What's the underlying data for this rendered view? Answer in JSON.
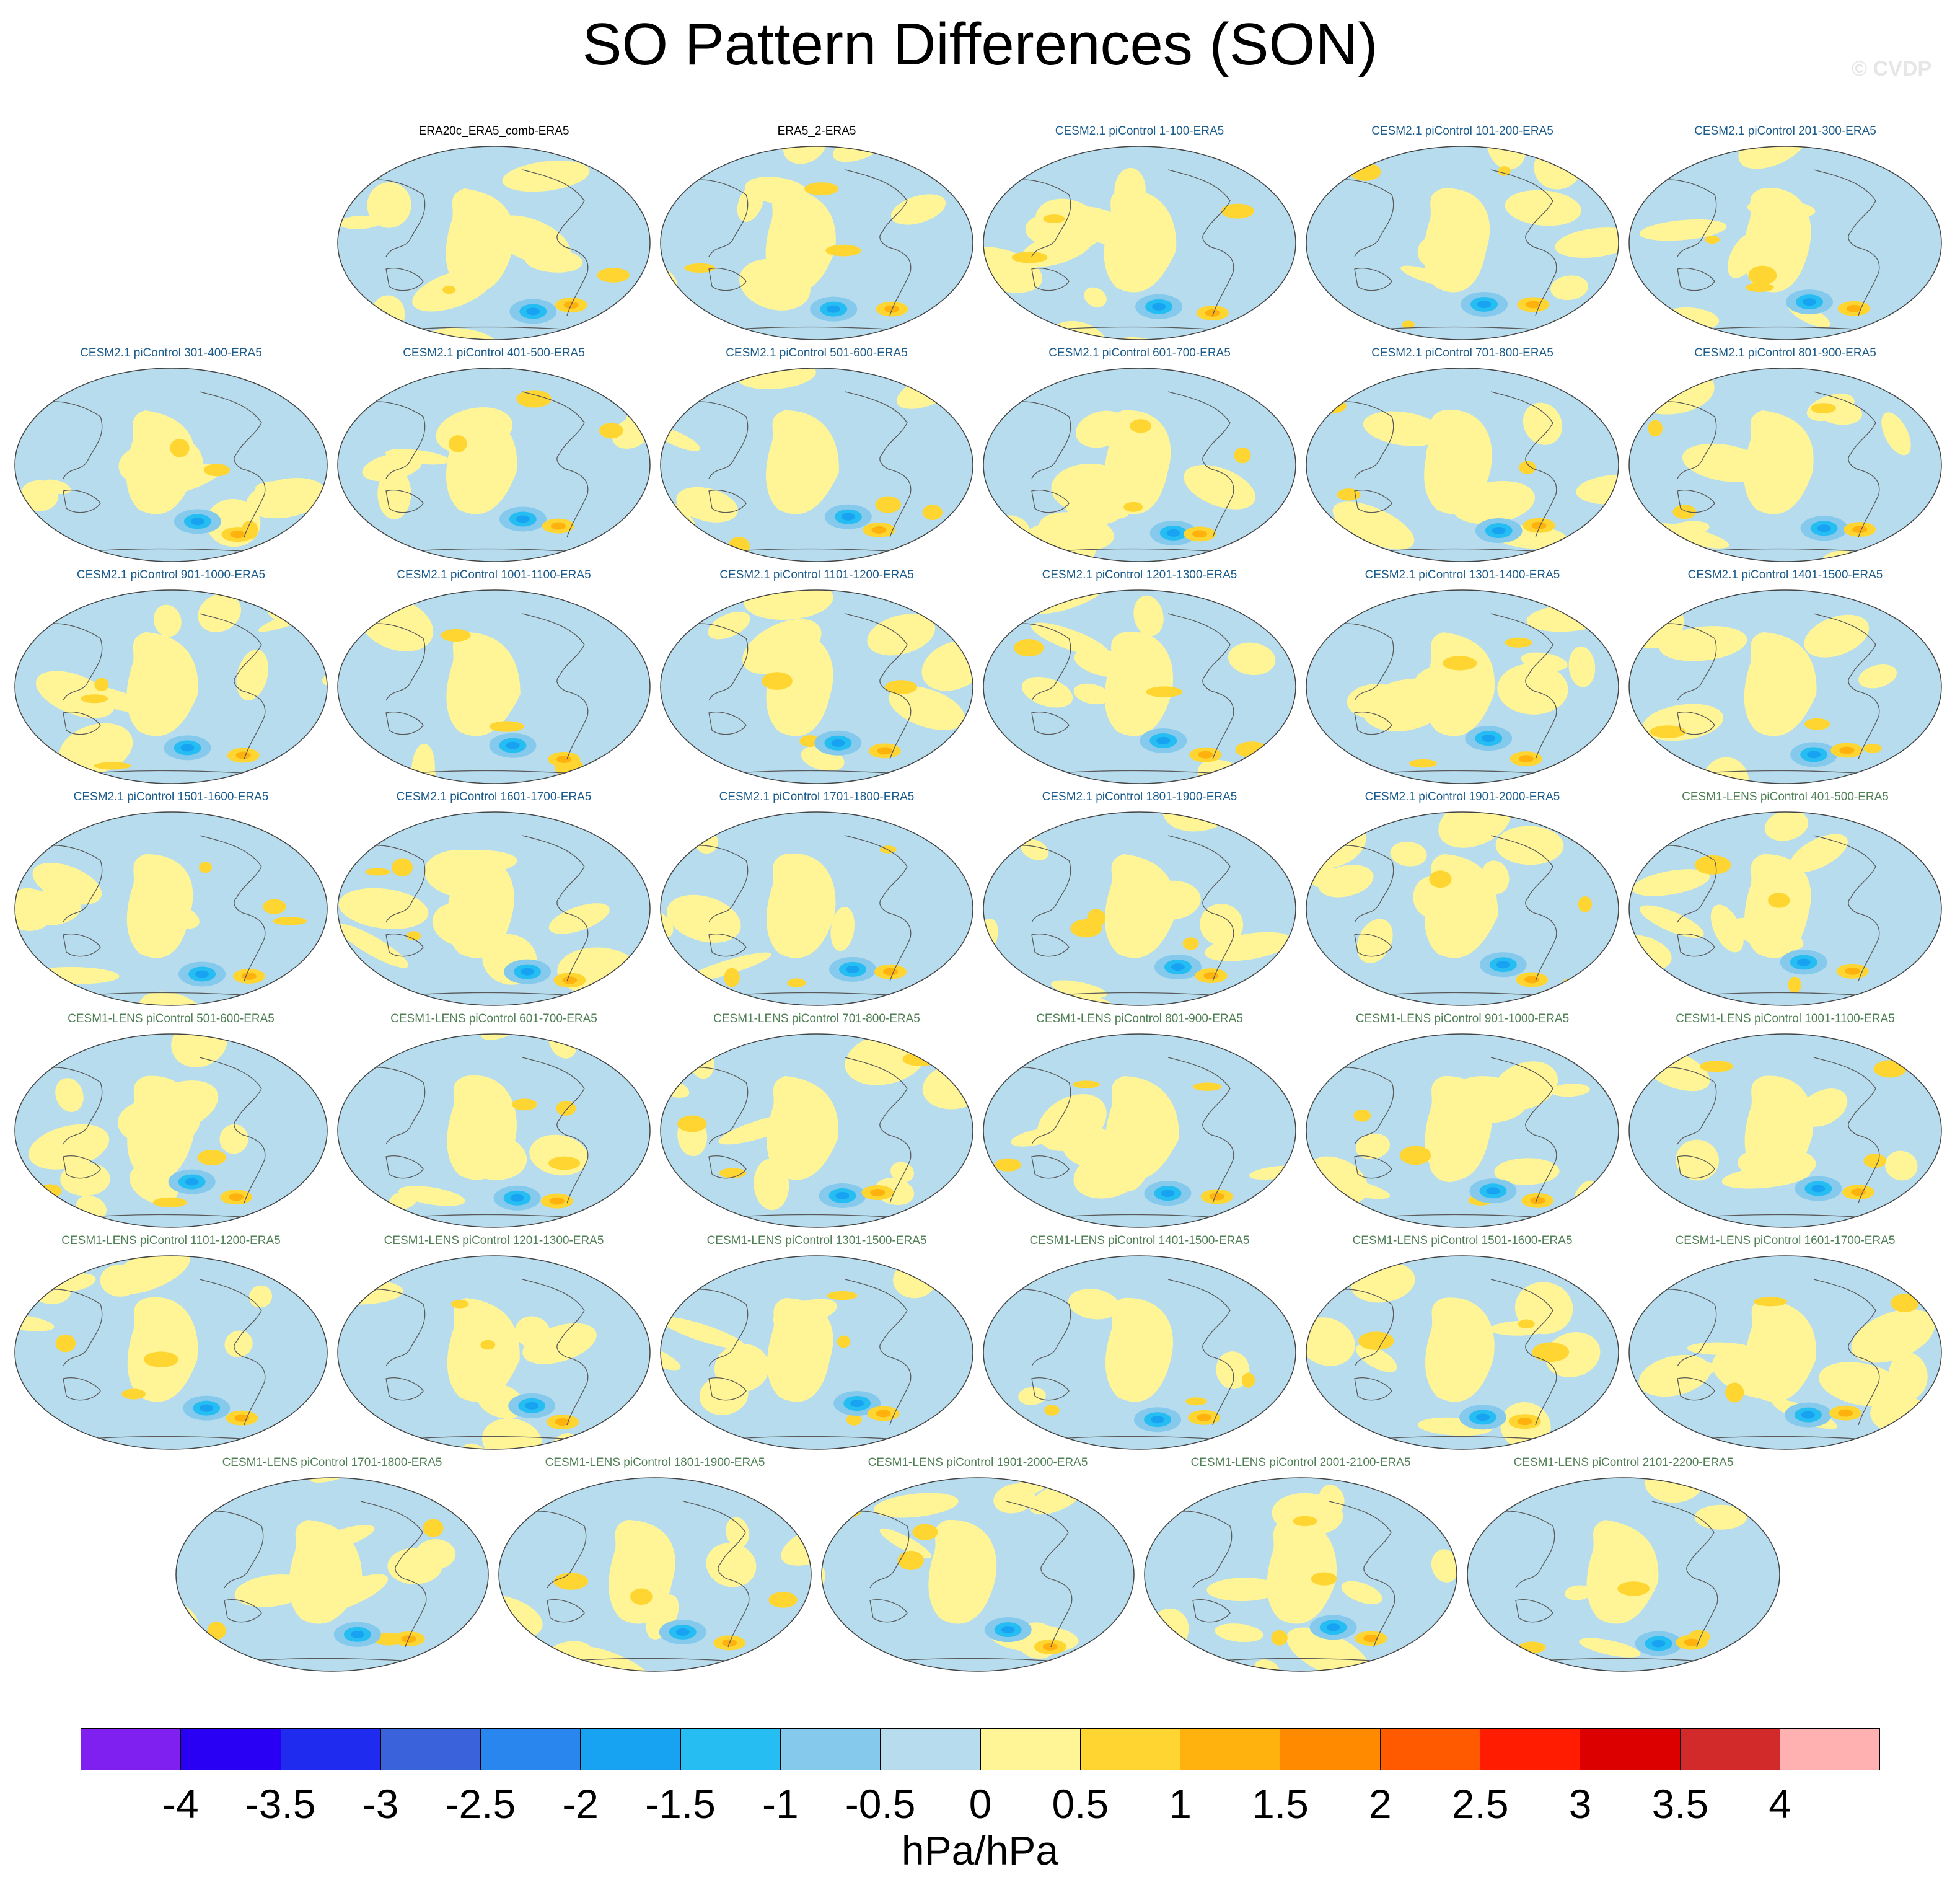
{
  "title": "SO Pattern Differences (SON)",
  "watermark": "© CVDP",
  "panels": [
    {
      "label": "ERA20c_ERA5_comb-ERA5",
      "group": "obs"
    },
    {
      "label": "ERA5_2-ERA5",
      "group": "obs"
    },
    {
      "label": "CESM2.1 piControl 1-100-ERA5",
      "group": "cesm2"
    },
    {
      "label": "CESM2.1 piControl 101-200-ERA5",
      "group": "cesm2"
    },
    {
      "label": "CESM2.1 piControl 201-300-ERA5",
      "group": "cesm2"
    },
    {
      "label": "CESM2.1 piControl 301-400-ERA5",
      "group": "cesm2"
    },
    {
      "label": "CESM2.1 piControl 401-500-ERA5",
      "group": "cesm2"
    },
    {
      "label": "CESM2.1 piControl 501-600-ERA5",
      "group": "cesm2"
    },
    {
      "label": "CESM2.1 piControl 601-700-ERA5",
      "group": "cesm2"
    },
    {
      "label": "CESM2.1 piControl 701-800-ERA5",
      "group": "cesm2"
    },
    {
      "label": "CESM2.1 piControl 801-900-ERA5",
      "group": "cesm2"
    },
    {
      "label": "CESM2.1 piControl 901-1000-ERA5",
      "group": "cesm2"
    },
    {
      "label": "CESM2.1 piControl 1001-1100-ERA5",
      "group": "cesm2"
    },
    {
      "label": "CESM2.1 piControl 1101-1200-ERA5",
      "group": "cesm2"
    },
    {
      "label": "CESM2.1 piControl 1201-1300-ERA5",
      "group": "cesm2"
    },
    {
      "label": "CESM2.1 piControl 1301-1400-ERA5",
      "group": "cesm2"
    },
    {
      "label": "CESM2.1 piControl 1401-1500-ERA5",
      "group": "cesm2"
    },
    {
      "label": "CESM2.1 piControl 1501-1600-ERA5",
      "group": "cesm2"
    },
    {
      "label": "CESM2.1 piControl 1601-1700-ERA5",
      "group": "cesm2"
    },
    {
      "label": "CESM2.1 piControl 1701-1800-ERA5",
      "group": "cesm2"
    },
    {
      "label": "CESM2.1 piControl 1801-1900-ERA5",
      "group": "cesm2"
    },
    {
      "label": "CESM2.1 piControl 1901-2000-ERA5",
      "group": "cesm2"
    },
    {
      "label": "CESM1-LENS piControl 401-500-ERA5",
      "group": "cesm1"
    },
    {
      "label": "CESM1-LENS piControl 501-600-ERA5",
      "group": "cesm1"
    },
    {
      "label": "CESM1-LENS piControl 601-700-ERA5",
      "group": "cesm1"
    },
    {
      "label": "CESM1-LENS piControl 701-800-ERA5",
      "group": "cesm1"
    },
    {
      "label": "CESM1-LENS piControl 801-900-ERA5",
      "group": "cesm1"
    },
    {
      "label": "CESM1-LENS piControl 901-1000-ERA5",
      "group": "cesm1"
    },
    {
      "label": "CESM1-LENS piControl 1001-1100-ERA5",
      "group": "cesm1"
    },
    {
      "label": "CESM1-LENS piControl 1101-1200-ERA5",
      "group": "cesm1"
    },
    {
      "label": "CESM1-LENS piControl 1201-1300-ERA5",
      "group": "cesm1"
    },
    {
      "label": "CESM1-LENS piControl 1301-1500-ERA5",
      "group": "cesm1"
    },
    {
      "label": "CESM1-LENS piControl 1401-1500-ERA5",
      "group": "cesm1"
    },
    {
      "label": "CESM1-LENS piControl 1501-1600-ERA5",
      "group": "cesm1"
    },
    {
      "label": "CESM1-LENS piControl 1601-1700-ERA5",
      "group": "cesm1"
    },
    {
      "label": "CESM1-LENS piControl 1701-1800-ERA5",
      "group": "cesm1"
    },
    {
      "label": "CESM1-LENS piControl 1801-1900-ERA5",
      "group": "cesm1"
    },
    {
      "label": "CESM1-LENS piControl 1901-2000-ERA5",
      "group": "cesm1"
    },
    {
      "label": "CESM1-LENS piControl 2001-2100-ERA5",
      "group": "cesm1"
    },
    {
      "label": "CESM1-LENS piControl 2101-2200-ERA5",
      "group": "cesm1"
    }
  ],
  "colorbar": {
    "colors": [
      "#7f1ff0",
      "#2a00f5",
      "#1f2cf0",
      "#3a63db",
      "#2a86ef",
      "#17a3f2",
      "#26bdf2",
      "#85c9ec",
      "#b6dcee",
      "#fff596",
      "#ffd531",
      "#ffb10e",
      "#ff8a00",
      "#ff5a00",
      "#ff1c00",
      "#dd0000",
      "#d22a2a",
      "#ffb0b0"
    ],
    "tick_labels": [
      "-4",
      "-3.5",
      "-3",
      "-2.5",
      "-2",
      "-1.5",
      "-1",
      "-0.5",
      "0",
      "0.5",
      "1",
      "1.5",
      "2",
      "2.5",
      "3",
      "3.5",
      "4"
    ],
    "units": "hPa/hPa"
  }
}
